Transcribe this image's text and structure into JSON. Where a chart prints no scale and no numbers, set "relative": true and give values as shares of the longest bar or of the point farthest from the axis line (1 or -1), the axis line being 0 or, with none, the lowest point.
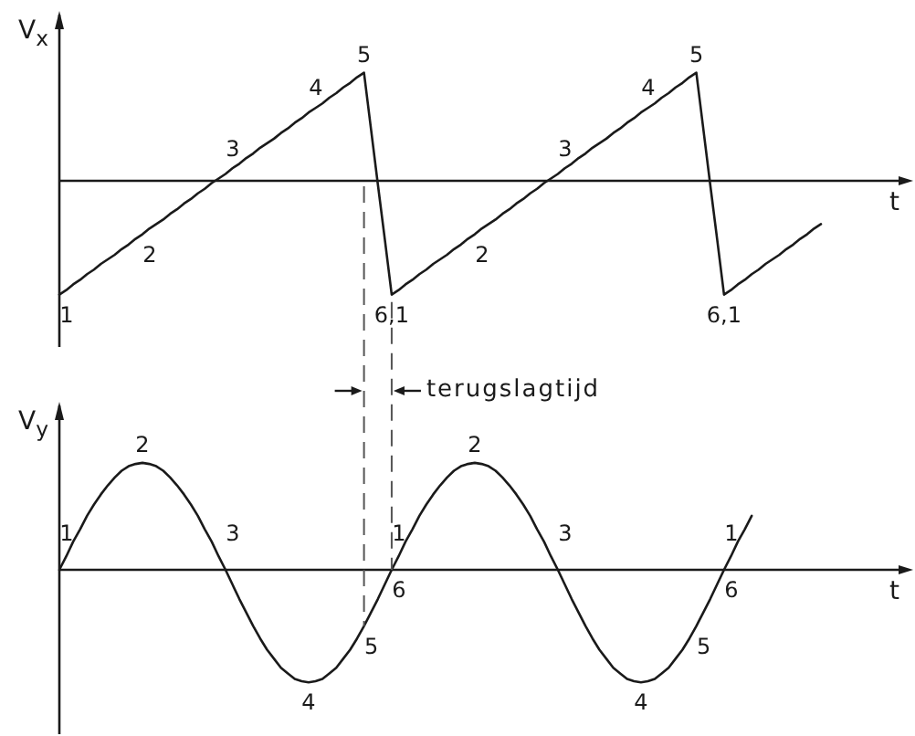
{
  "chart_data": [
    {
      "type": "line",
      "ylabel": "V$_{x}$",
      "xlabel": "t",
      "relative": true,
      "color": "#1a1a1a",
      "categories": [
        null,
        null,
        null,
        null,
        null,
        null,
        null,
        null,
        null,
        null,
        null,
        null,
        null,
        null,
        null,
        null,
        null,
        null,
        null,
        null,
        null,
        null,
        null,
        null,
        null,
        null,
        null,
        null,
        null,
        null,
        null,
        null,
        null,
        null,
        null,
        null,
        null,
        null,
        null,
        null,
        null,
        null,
        null,
        null,
        null,
        null,
        null,
        null,
        null,
        null,
        null,
        null,
        null,
        null,
        null,
        null,
        null,
        null,
        null,
        null,
        null,
        null,
        null,
        null,
        null,
        null,
        null,
        null,
        null,
        null,
        null,
        null,
        null,
        null,
        null,
        null,
        null,
        null,
        null,
        null,
        null,
        null,
        null,
        null,
        null,
        null,
        null,
        null,
        null,
        null,
        null,
        null,
        null,
        null,
        null,
        null,
        null,
        null,
        null,
        null,
        null,
        null,
        null,
        null,
        null,
        null,
        null,
        null,
        null,
        null,
        null,
        null,
        null,
        null,
        null,
        null,
        null,
        null,
        null,
        null,
        null,
        null,
        null
      ],
      "values": [
        -1,
        -0.96,
        -0.91,
        -0.87,
        -0.82,
        -0.78,
        -0.73,
        -0.69,
        -0.65,
        -0.6,
        -0.56,
        -0.51,
        -0.47,
        -0.42,
        -0.38,
        -0.34,
        -0.29,
        -0.25,
        -0.2,
        -0.16,
        -0.11,
        -0.07,
        -0.02,
        0.02,
        0.06,
        0.11,
        0.15,
        0.2,
        0.24,
        0.29,
        0.33,
        0.37,
        0.42,
        0.46,
        0.51,
        0.55,
        0.6,
        0.64,
        0.68,
        0.73,
        0.77,
        0.82,
        0.86,
        0.91,
        0.95,
        0.46,
        -0.03,
        -0.51,
        -1,
        -0.96,
        -0.91,
        -0.87,
        -0.82,
        -0.78,
        -0.73,
        -0.69,
        -0.65,
        -0.6,
        -0.56,
        -0.51,
        -0.47,
        -0.42,
        -0.38,
        -0.34,
        -0.29,
        -0.25,
        -0.2,
        -0.16,
        -0.11,
        -0.07,
        -0.02,
        0.02,
        0.06,
        0.11,
        0.15,
        0.2,
        0.24,
        0.29,
        0.33,
        0.37,
        0.42,
        0.46,
        0.51,
        0.55,
        0.6,
        0.64,
        0.68,
        0.73,
        0.77,
        0.82,
        0.86,
        0.91,
        0.95,
        0.46,
        -0.03,
        -0.51,
        -1,
        -0.96,
        -0.91,
        -0.87,
        -0.82,
        -0.78,
        -0.73,
        -0.69,
        -0.65,
        -0.6,
        -0.56,
        -0.51,
        -0.47,
        -0.42,
        -0.38,
        null,
        null,
        null,
        null,
        null,
        null,
        null,
        null,
        null,
        null,
        null,
        null
      ],
      "annotations": [
        {
          "text": "1",
          "y": -1
        },
        {
          "text": "2",
          "y": -0.47
        },
        {
          "text": "3",
          "y": 0.06
        },
        {
          "text": "4",
          "y": 0.6
        },
        {
          "text": "5",
          "y": 0.95
        },
        {
          "text": "6,1",
          "y": -1
        },
        {
          "text": "2",
          "y": -0.47
        },
        {
          "text": "3",
          "y": 0.06
        },
        {
          "text": "4",
          "y": 0.6
        },
        {
          "text": "5",
          "y": 0.95
        },
        {
          "text": "6,1",
          "y": -1
        }
      ]
    },
    {
      "type": "line",
      "ylabel": "V$_{y}$",
      "xlabel": "t",
      "relative": true,
      "color": "#1a1a1a",
      "categories": [
        null,
        null,
        null,
        null,
        null,
        null,
        null,
        null,
        null,
        null,
        null,
        null,
        null,
        null,
        null,
        null,
        null,
        null,
        null,
        null,
        null,
        null,
        null,
        null,
        null,
        null,
        null,
        null,
        null,
        null,
        null,
        null,
        null,
        null,
        null,
        null,
        null,
        null,
        null,
        null,
        null,
        null,
        null,
        null,
        null,
        null,
        null,
        null,
        null,
        null,
        null,
        null,
        null,
        null,
        null,
        null,
        null,
        null,
        null,
        null,
        null,
        null,
        null,
        null,
        null,
        null,
        null,
        null,
        null,
        null,
        null,
        null,
        null,
        null,
        null,
        null,
        null,
        null,
        null,
        null,
        null,
        null,
        null,
        null,
        null,
        null,
        null,
        null,
        null,
        null,
        null,
        null,
        null,
        null,
        null,
        null,
        null,
        null,
        null,
        null,
        null,
        null,
        null,
        null,
        null,
        null,
        null,
        null,
        null,
        null,
        null,
        null,
        null,
        null,
        null,
        null,
        null,
        null,
        null,
        null,
        null,
        null,
        null
      ],
      "values": [
        0,
        0.12,
        0.25,
        0.36,
        0.48,
        0.58,
        0.67,
        0.75,
        0.82,
        0.88,
        0.92,
        0.94,
        0.95,
        0.94,
        0.92,
        0.88,
        0.82,
        0.75,
        0.67,
        0.58,
        0.48,
        0.36,
        0.25,
        0.12,
        0,
        -0.13,
        -0.26,
        -0.38,
        -0.5,
        -0.61,
        -0.71,
        -0.79,
        -0.87,
        -0.92,
        -0.97,
        -0.99,
        -1,
        -0.99,
        -0.97,
        -0.92,
        -0.87,
        -0.79,
        -0.71,
        -0.61,
        -0.5,
        -0.38,
        -0.26,
        -0.13,
        0,
        0.12,
        0.25,
        0.36,
        0.48,
        0.58,
        0.67,
        0.75,
        0.82,
        0.88,
        0.92,
        0.94,
        0.95,
        0.94,
        0.92,
        0.88,
        0.82,
        0.75,
        0.67,
        0.58,
        0.48,
        0.36,
        0.25,
        0.12,
        0,
        -0.13,
        -0.26,
        -0.38,
        -0.5,
        -0.61,
        -0.71,
        -0.79,
        -0.87,
        -0.92,
        -0.97,
        -0.99,
        -1,
        -0.99,
        -0.97,
        -0.92,
        -0.87,
        -0.79,
        -0.71,
        -0.61,
        -0.5,
        -0.38,
        -0.26,
        -0.13,
        0,
        0.12,
        0.25,
        0.36,
        0.48,
        null,
        null,
        null,
        null,
        null,
        null,
        null,
        null,
        null,
        null,
        null,
        null,
        null,
        null,
        null,
        null,
        null,
        null,
        null,
        null,
        null,
        null
      ],
      "annotations": [
        {
          "text": "1",
          "y": 0
        },
        {
          "text": "2",
          "y": 0.95
        },
        {
          "text": "3",
          "y": 0
        },
        {
          "text": "4",
          "y": -1
        },
        {
          "text": "5",
          "y": -0.5
        },
        {
          "text": "6",
          "y": 0
        },
        {
          "text": "1",
          "y": 0
        },
        {
          "text": "2",
          "y": 0.95
        },
        {
          "text": "3",
          "y": 0
        },
        {
          "text": "4",
          "y": -1
        },
        {
          "text": "5",
          "y": -0.5
        },
        {
          "text": "6",
          "y": 0
        },
        {
          "text": "1",
          "y": 0
        },
        "terugslagtijd"
      ]
    }
  ]
}
